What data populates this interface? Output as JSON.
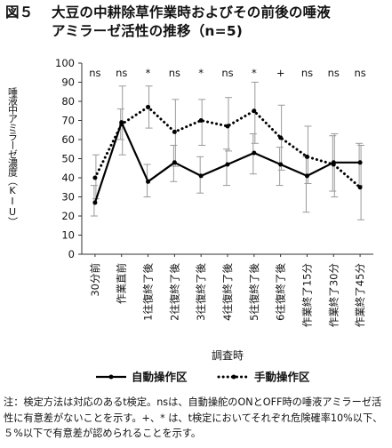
{
  "title": {
    "number": "図５",
    "line1": "大豆の中耕除草作業時およびその前後の唾液",
    "line2": "アミラーゼ活性の推移（n=5)"
  },
  "note": {
    "label": "注：",
    "text": "検定方法は対応のあるt検定。nsは、自動操舵のONとOFF時の唾液アミラーゼ活性に有意差がないことを示す。+、* は、t検定においてそれぞれ危険確率10%以下、５%以下で有意差が認められることを示す。"
  },
  "chart_data": {
    "type": "line",
    "ylabel": "唾液中アミラーゼ濃度（KIU）",
    "xlabel": "調査時",
    "ylim": [
      0,
      100
    ],
    "ytick_step": 10,
    "categories": [
      "30分前",
      "作業直前",
      "1往復終了後",
      "2往復終了後",
      "3往復終了後",
      "4往復終了後",
      "5往復終了後",
      "6往復終了後",
      "作業終了15分",
      "作業終了30分",
      "作業終了45分"
    ],
    "significance": [
      "ns",
      "ns",
      "*",
      "ns",
      "*",
      "ns",
      "*",
      "+",
      "ns",
      "ns",
      "ns"
    ],
    "series": [
      {
        "name": "自動操作区",
        "style": "solid",
        "color": "#000000",
        "values": [
          27,
          69,
          38,
          48,
          41,
          47,
          53,
          47,
          41,
          48,
          48
        ],
        "err_upper": [
          36,
          76,
          47,
          57,
          51,
          55,
          63,
          56,
          51,
          62,
          58
        ],
        "err_lower": [
          20,
          60,
          30,
          38,
          32,
          36,
          42,
          36,
          22,
          33,
          36
        ]
      },
      {
        "name": "手動操作区",
        "style": "dotted",
        "color": "#000000",
        "values": [
          40,
          68,
          77,
          64,
          70,
          67,
          75,
          61,
          51,
          47,
          35
        ],
        "err_upper": [
          52,
          88,
          88,
          81,
          81,
          82,
          90,
          78,
          67,
          63,
          57
        ],
        "err_lower": [
          29,
          52,
          66,
          46,
          57,
          54,
          58,
          44,
          37,
          30,
          18
        ]
      }
    ]
  }
}
